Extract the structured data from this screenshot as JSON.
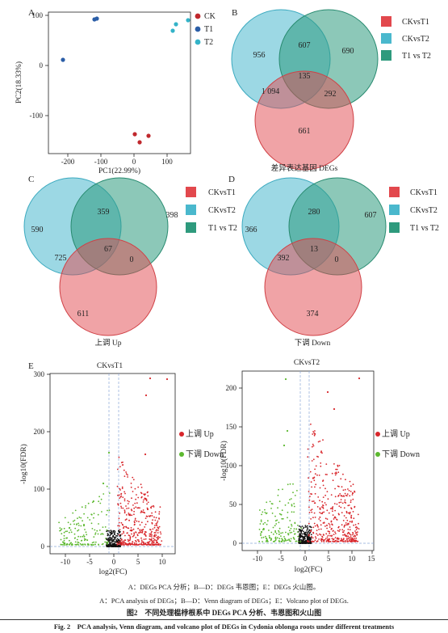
{
  "panels": {
    "a": "A",
    "b": "B",
    "c": "C",
    "d": "D",
    "e": "E"
  },
  "pca": {
    "xlabel": "PC1(22.99%)",
    "ylabel": "PC2(18.33%)",
    "xticks": [
      "-200",
      "-100",
      "0",
      "100"
    ],
    "yticks": [
      "100",
      "0",
      "-100"
    ],
    "legend": [
      {
        "label": "CK",
        "color": "#c0282d"
      },
      {
        "label": "T1",
        "color": "#2b5ea7"
      },
      {
        "label": "T2",
        "color": "#34b3c8"
      }
    ]
  },
  "venn_legend": [
    {
      "label": "CKvsT1",
      "color": "#e2484d"
    },
    {
      "label": "CKvsT2",
      "color": "#4ab8cd"
    },
    {
      "label": "T1 vs T2",
      "color": "#2e9a7d"
    }
  ],
  "venn_b": {
    "n1": "956",
    "n12": "607",
    "n2": "690",
    "n123": "135",
    "n13": "1 094",
    "n23": "292",
    "n3": "661",
    "caption": "差异表达基因 DEGs"
  },
  "venn_c": {
    "n1": "590",
    "n12": "359",
    "n2": "398",
    "n123": "67",
    "n13": "725",
    "n23": "0",
    "n3": "611",
    "caption": "上调 Up"
  },
  "venn_d": {
    "n1": "366",
    "n12": "280",
    "n2": "607",
    "n123": "13",
    "n13": "392",
    "n23": "0",
    "n3": "374",
    "caption": "下调 Down"
  },
  "volcano_left": {
    "title": "CKvsT1",
    "xlabel": "log2(FC)",
    "ylabel": "-log10(FDR)",
    "xticks": [
      "-10",
      "-5",
      "0",
      "5",
      "10"
    ],
    "yticks": [
      "0",
      "100",
      "200",
      "300"
    ],
    "legend_up": "上调 Up",
    "legend_down": "下调 Down"
  },
  "volcano_right": {
    "title": "CKvsT2",
    "xlabel": "log2(FC)",
    "ylabel": "-log10(FDR)",
    "xticks": [
      "-10",
      "-5",
      "0",
      "5",
      "10",
      "15"
    ],
    "yticks": [
      "0",
      "50",
      "100",
      "150",
      "200"
    ],
    "legend_up": "上调 Up",
    "legend_down": "下调 Down"
  },
  "caption": {
    "cn_note": "A：DEGs PCA 分析；B—D：DEGs 韦恩图；E：DEGs 火山图。",
    "en_note": "A：PCA analysis of DEGs；B—D：Venn diagram of DEGs；E：Volcano plot of DEGs.",
    "cn_title": "图2　不同处理榅桲根系中 DEGs PCA 分析、韦恩图和火山图",
    "en_title": "Fig. 2　PCA analysis, Venn diagram, and volcano plot of DEGs in Cydonia oblonga roots under different treatments"
  },
  "colors": {
    "up": "#d8262b",
    "down": "#5cb82f",
    "ns": "#111111",
    "threshold": "#8aa6d8"
  }
}
